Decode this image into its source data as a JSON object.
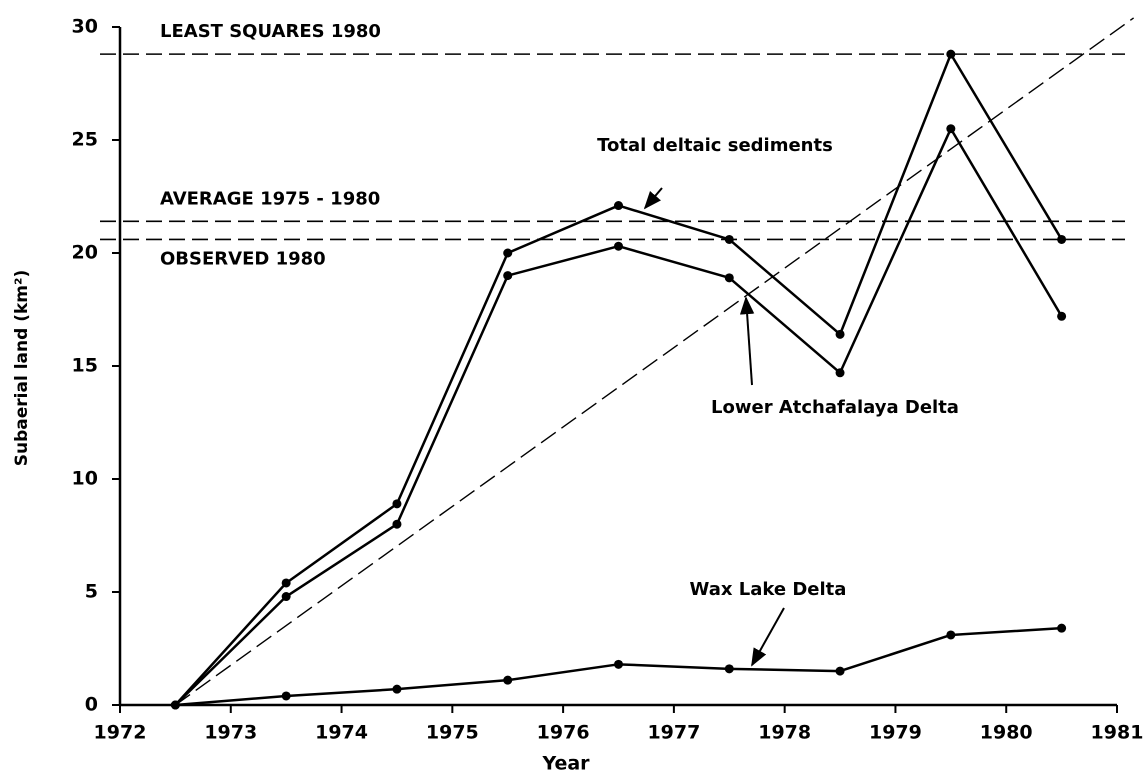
{
  "chart_data": {
    "type": "line",
    "x_label": "Year",
    "y_label": "Subaerial land (km²)",
    "xlim": [
      1972,
      1981
    ],
    "xticks": [
      1972,
      1973,
      1974,
      1975,
      1976,
      1977,
      1978,
      1979,
      1980,
      1981
    ],
    "ylim": [
      0,
      30
    ],
    "yticks": [
      0,
      5,
      10,
      15,
      20,
      25,
      30
    ],
    "x": [
      1972.5,
      1973.5,
      1974.5,
      1975.5,
      1976.5,
      1977.5,
      1978.5,
      1979.5,
      1980.5
    ],
    "series": [
      {
        "name": "Total deltaic sediments",
        "color": "#000000",
        "values": [
          0,
          5.4,
          8.9,
          20.0,
          22.1,
          20.6,
          16.4,
          28.8,
          20.6
        ]
      },
      {
        "name": "Lower Atchafalaya Delta",
        "color": "#000000",
        "values": [
          0,
          4.8,
          8.0,
          19.0,
          20.3,
          18.9,
          14.7,
          25.5,
          17.2
        ]
      },
      {
        "name": "Wax Lake Delta",
        "color": "#000000",
        "values": [
          0,
          0.4,
          0.7,
          1.1,
          1.8,
          1.6,
          1.5,
          3.1,
          3.4
        ]
      }
    ],
    "reference_lines": [
      {
        "label": "LEAST SQUARES 1980",
        "value": 28.8
      },
      {
        "label": "AVERAGE 1975 - 1980",
        "value": 21.4
      },
      {
        "label": "OBSERVED 1980",
        "value": 20.6
      }
    ],
    "trend_line": {
      "x": [
        1972.5,
        1981.15
      ],
      "y": [
        0,
        30.4
      ]
    }
  }
}
